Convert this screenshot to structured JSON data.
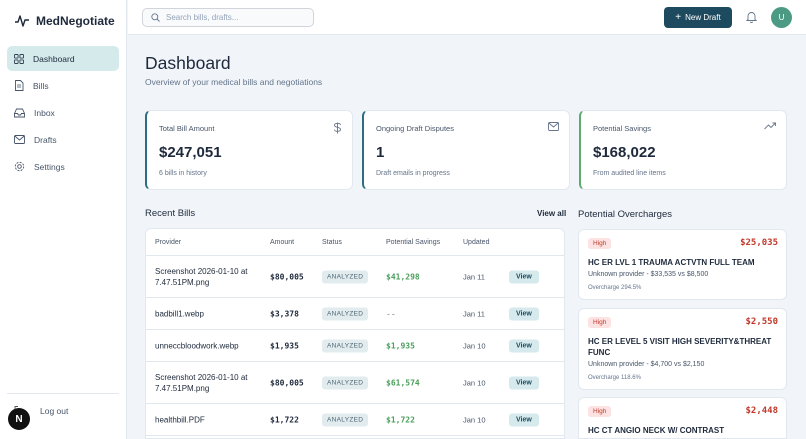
{
  "brand": {
    "name": "MedNegotiate",
    "accent": "#2c6e7f"
  },
  "sidebar": {
    "items": [
      {
        "label": "Dashboard",
        "icon": "grid-icon",
        "active": true
      },
      {
        "label": "Bills",
        "icon": "file-icon",
        "active": false
      },
      {
        "label": "Inbox",
        "icon": "inbox-icon",
        "active": false
      },
      {
        "label": "Drafts",
        "icon": "mail-icon",
        "active": false
      },
      {
        "label": "Settings",
        "icon": "gear-icon",
        "active": false
      }
    ],
    "logout_label": "Log out",
    "badge": "N"
  },
  "topbar": {
    "search_placeholder": "Search bills, drafts...",
    "new_draft_label": "New Draft",
    "avatar_initial": "U"
  },
  "page": {
    "title": "Dashboard",
    "subtitle": "Overview of your medical bills and negotiations"
  },
  "stats": [
    {
      "label": "Total Bill Amount",
      "value": "$247,051",
      "foot": "6 bills in history",
      "icon": "dollar-icon"
    },
    {
      "label": "Ongoing Draft Disputes",
      "value": "1",
      "foot": "Draft emails in progress",
      "icon": "mail-icon"
    },
    {
      "label": "Potential Savings",
      "value": "$168,022",
      "foot": "From audited line items",
      "icon": "trending-up-icon"
    }
  ],
  "recent": {
    "title": "Recent Bills",
    "view_all": "View all",
    "columns": [
      "Provider",
      "Amount",
      "Status",
      "Potential Savings",
      "Updated"
    ],
    "rows": [
      {
        "provider": "Screenshot 2026-01-10 at 7.47.51PM.png",
        "amount": "$80,005",
        "status": "ANALYZED",
        "savings": "$41,298",
        "updated": "Jan 11",
        "action": "View"
      },
      {
        "provider": "badbill1.webp",
        "amount": "$3,378",
        "status": "ANALYZED",
        "savings": "--",
        "updated": "Jan 11",
        "action": "View"
      },
      {
        "provider": "unneccbloodwork.webp",
        "amount": "$1,935",
        "status": "ANALYZED",
        "savings": "$1,935",
        "updated": "Jan 10",
        "action": "View"
      },
      {
        "provider": "Screenshot 2026-01-10 at 7.47.51PM.png",
        "amount": "$80,005",
        "status": "ANALYZED",
        "savings": "$61,574",
        "updated": "Jan 10",
        "action": "View"
      },
      {
        "provider": "healthbill.PDF",
        "amount": "$1,722",
        "status": "ANALYZED",
        "savings": "$1,722",
        "updated": "Jan 10",
        "action": "View"
      }
    ]
  },
  "overcharges": {
    "title": "Potential Overcharges",
    "items": [
      {
        "severity": "High",
        "amount": "$25,035",
        "title": "HC ER LVL 1 TRAUMA ACTVTN FULL TEAM",
        "detail": "Unknown provider - $33,535 vs $8,500",
        "pct": "Overcharge 294.5%"
      },
      {
        "severity": "High",
        "amount": "$2,550",
        "title": "HC ER LEVEL 5 VISIT HIGH SEVERITY&THREAT FUNC",
        "detail": "Unknown provider - $4,700 vs $2,150",
        "pct": "Overcharge 118.6%"
      },
      {
        "severity": "High",
        "amount": "$2,448",
        "title": "HC CT ANGIO NECK W/ CONTRAST",
        "detail": "",
        "pct": ""
      }
    ]
  }
}
